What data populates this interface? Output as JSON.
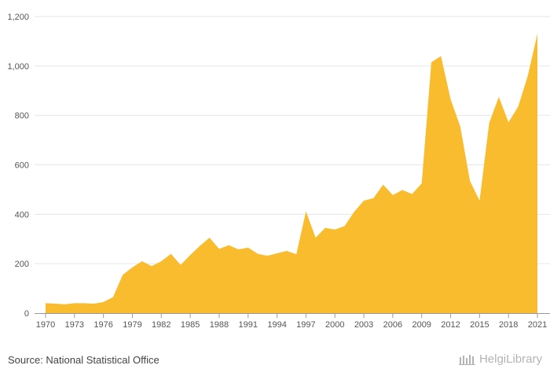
{
  "source_text": "Source: National Statistical Office",
  "logo_text": "HelgiLibrary",
  "colors": {
    "area": "#f8bc2e",
    "grid": "#e6e6e6",
    "axis": "#999999"
  },
  "chart_data": {
    "type": "area",
    "title": "",
    "xlabel": "",
    "ylabel": "",
    "ylim": [
      0,
      1200
    ],
    "yticks": [
      0,
      200,
      400,
      600,
      800,
      1000,
      1200
    ],
    "ytick_labels": [
      "0",
      "200",
      "400",
      "600",
      "800",
      "1,000",
      "1,200"
    ],
    "xticks": [
      1970,
      1973,
      1976,
      1979,
      1982,
      1985,
      1988,
      1991,
      1994,
      1997,
      2000,
      2003,
      2006,
      2009,
      2012,
      2015,
      2018,
      2021
    ],
    "grid": true,
    "legend": "none",
    "series": [
      {
        "x": [
          1970,
          1971,
          1972,
          1973,
          1974,
          1975,
          1976,
          1977,
          1978,
          1979,
          1980,
          1981,
          1982,
          1983,
          1984,
          1985,
          1986,
          1987,
          1988,
          1989,
          1990,
          1991,
          1992,
          1993,
          1994,
          1995,
          1996,
          1997,
          1998,
          1999,
          2000,
          2001,
          2002,
          2003,
          2004,
          2005,
          2006,
          2007,
          2008,
          2009,
          2010,
          2011,
          2012,
          2013,
          2014,
          2015,
          2016,
          2017,
          2018,
          2019,
          2020,
          2021
        ],
        "values": [
          40,
          38,
          36,
          40,
          40,
          38,
          45,
          65,
          155,
          185,
          210,
          190,
          210,
          240,
          195,
          235,
          272,
          305,
          260,
          275,
          258,
          265,
          240,
          232,
          242,
          252,
          238,
          412,
          305,
          345,
          338,
          352,
          410,
          455,
          465,
          520,
          478,
          498,
          482,
          525,
          1015,
          1040,
          865,
          755,
          535,
          455,
          770,
          875,
          772,
          835,
          960,
          1130
        ]
      }
    ]
  }
}
